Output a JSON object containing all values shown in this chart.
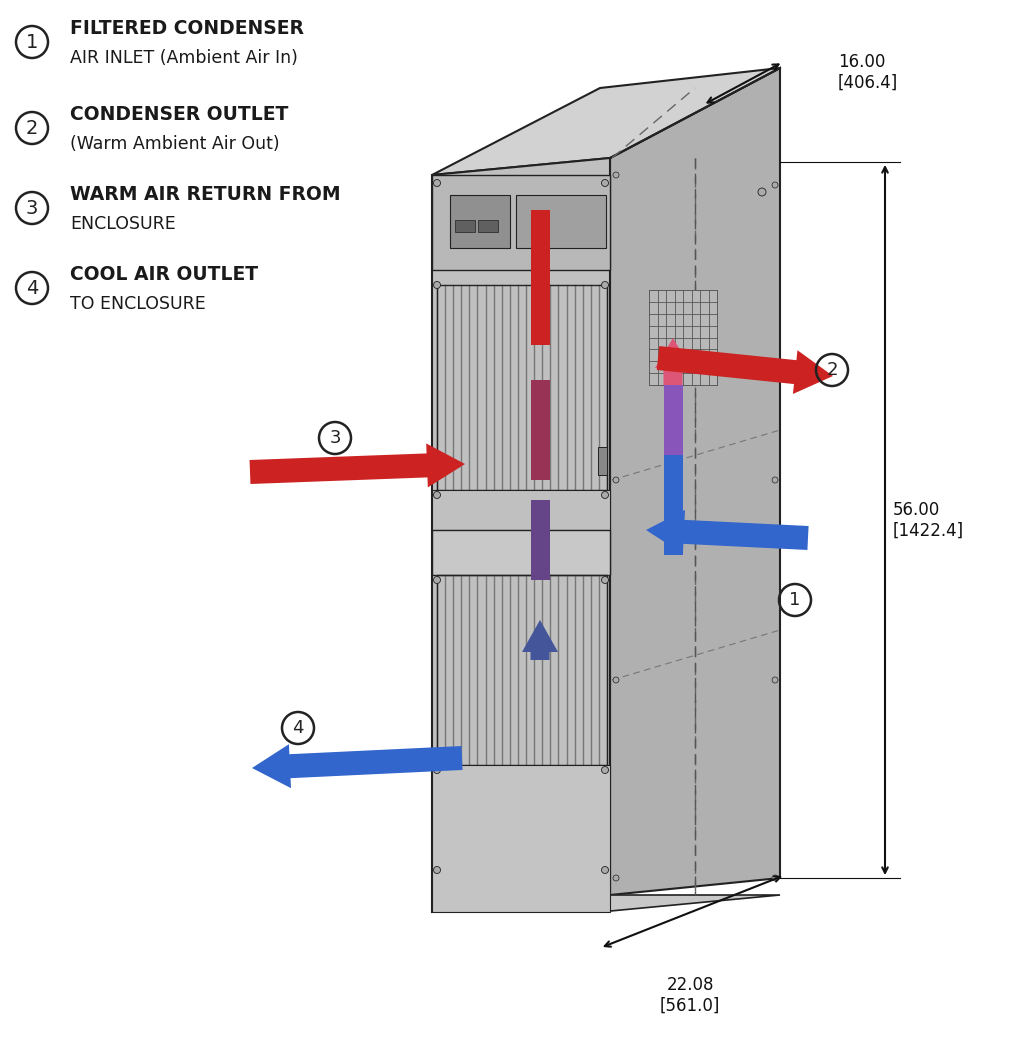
{
  "bg_color": "#ffffff",
  "line_color": "#222222",
  "face_color": "#c0c0c0",
  "top_color": "#d2d2d2",
  "side_color": "#b0b0b0",
  "inner_floor_color": "#c8c8c8",
  "inner_wall_color": "#d0d0d0",
  "grill_color": "#909090",
  "red_arrow": "#cc2222",
  "blue_arrow": "#3366cc",
  "label1_line1": "FILTERED CONDENSER",
  "label1_line2": "AIR INLET (Ambient Air In)",
  "label2_line1": "CONDENSER OUTLET",
  "label2_line2": "(Warm Ambient Air Out)",
  "label3_line1": "WARM AIR RETURN FROM",
  "label3_line2": "ENCLOSURE",
  "label4_line1": "COOL AIR OUTLET",
  "label4_line2": "TO ENCLOSURE",
  "dim1_text": "16.00\n[406.4]",
  "dim2_text": "56.00\n[1422.4]",
  "dim3_text": "22.08\n[561.0]",
  "font_size_label": 13.5,
  "font_size_dim": 12,
  "font_size_num": 13
}
